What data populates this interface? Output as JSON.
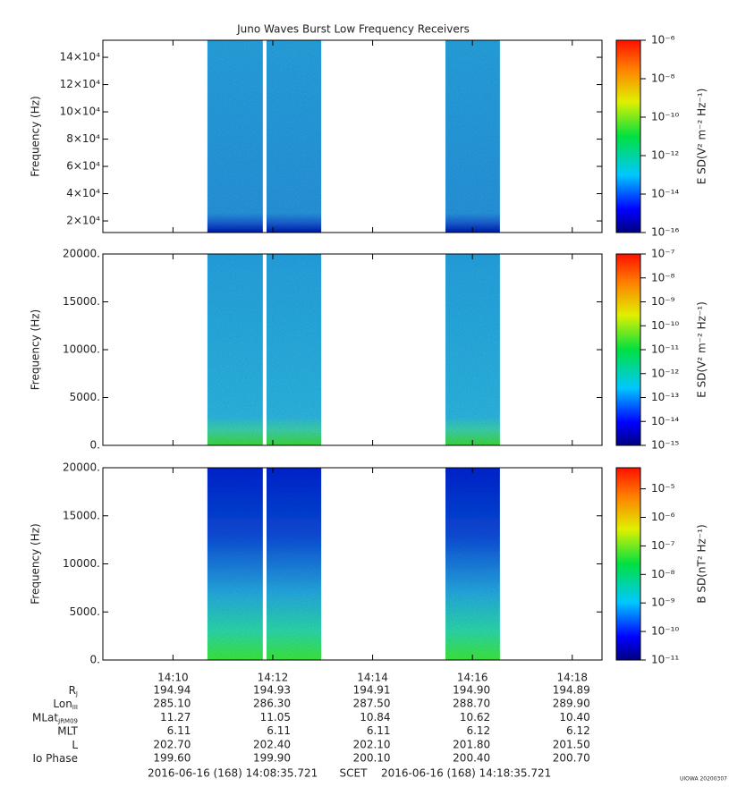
{
  "chart_data": [
    {
      "type": "heatmap",
      "title": "Juno Waves Burst Low Frequency Receivers",
      "ylabel": "Frequency (Hz)",
      "ylim": [
        11500,
        152500
      ],
      "yticks": [
        {
          "value": 20000,
          "label": "2×10⁴"
        },
        {
          "value": 40000,
          "label": "4×10⁴"
        },
        {
          "value": 60000,
          "label": "6×10⁴"
        },
        {
          "value": 80000,
          "label": "8×10⁴"
        },
        {
          "value": 100000,
          "label": "10×10⁴"
        },
        {
          "value": 120000,
          "label": "12×10⁴"
        },
        {
          "value": 140000,
          "label": "14×10⁴"
        }
      ],
      "intervals": [
        [
          850.69,
          851.8
        ],
        [
          851.875,
          852.97
        ],
        [
          855.46,
          856.55
        ]
      ],
      "zlabel": "E SD(V² m⁻² Hz⁻¹)",
      "zscale": "log",
      "zlim": [
        1e-16,
        1e-06
      ],
      "zticks": [
        {
          "value": 1e-16,
          "label": "10⁻¹⁶"
        },
        {
          "value": 1e-14,
          "label": "10⁻¹⁴"
        },
        {
          "value": 1e-12,
          "label": "10⁻¹²"
        },
        {
          "value": 1e-10,
          "label": "10⁻¹⁰"
        },
        {
          "value": 1e-08,
          "label": "10⁻⁸"
        },
        {
          "value": 1e-06,
          "label": "10⁻⁶"
        }
      ]
    },
    {
      "type": "heatmap",
      "ylabel": "Frequency (Hz)",
      "ylim": [
        0,
        20000
      ],
      "yticks": [
        {
          "value": 0,
          "label": "0."
        },
        {
          "value": 5000,
          "label": "5000."
        },
        {
          "value": 10000,
          "label": "10000."
        },
        {
          "value": 15000,
          "label": "15000."
        },
        {
          "value": 20000,
          "label": "20000."
        }
      ],
      "intervals": [
        [
          850.69,
          851.8
        ],
        [
          851.875,
          852.97
        ],
        [
          855.46,
          856.55
        ]
      ],
      "zlabel": "E SD(V² m⁻² Hz⁻¹)",
      "zscale": "log",
      "zlim": [
        1e-15,
        1e-07
      ],
      "zticks": [
        {
          "value": 1e-15,
          "label": "10⁻¹⁵"
        },
        {
          "value": 1e-14,
          "label": "10⁻¹⁴"
        },
        {
          "value": 1e-13,
          "label": "10⁻¹³"
        },
        {
          "value": 1e-12,
          "label": "10⁻¹²"
        },
        {
          "value": 1e-11,
          "label": "10⁻¹¹"
        },
        {
          "value": 1e-10,
          "label": "10⁻¹⁰"
        },
        {
          "value": 1e-09,
          "label": "10⁻⁹"
        },
        {
          "value": 1e-08,
          "label": "10⁻⁸"
        },
        {
          "value": 1e-07,
          "label": "10⁻⁷"
        }
      ]
    },
    {
      "type": "heatmap",
      "ylabel": "Frequency (Hz)",
      "ylim": [
        0,
        20000
      ],
      "yticks": [
        {
          "value": 0,
          "label": "0."
        },
        {
          "value": 5000,
          "label": "5000."
        },
        {
          "value": 10000,
          "label": "10000."
        },
        {
          "value": 15000,
          "label": "15000."
        },
        {
          "value": 20000,
          "label": "20000."
        }
      ],
      "intervals": [
        [
          850.69,
          851.8
        ],
        [
          851.875,
          852.97
        ],
        [
          855.46,
          856.55
        ]
      ],
      "zlabel": "B SD(nT² Hz⁻¹)",
      "zscale": "log",
      "zlim": [
        1e-11,
        5.5e-05
      ],
      "zticks": [
        {
          "value": 1e-11,
          "label": "10⁻¹¹"
        },
        {
          "value": 1e-10,
          "label": "10⁻¹⁰"
        },
        {
          "value": 1e-09,
          "label": "10⁻⁹"
        },
        {
          "value": 1e-08,
          "label": "10⁻⁸"
        },
        {
          "value": 1e-07,
          "label": "10⁻⁷"
        },
        {
          "value": 1e-06,
          "label": "10⁻⁶"
        },
        {
          "value": 1e-05,
          "label": "10⁻⁵"
        }
      ]
    }
  ],
  "time_axis": {
    "xlim": [
      848.5954,
      858.5954
    ],
    "xticks": [
      {
        "value": 850,
        "label": "14:10"
      },
      {
        "value": 852,
        "label": "14:12"
      },
      {
        "value": 854,
        "label": "14:14"
      },
      {
        "value": 856,
        "label": "14:16"
      },
      {
        "value": 858,
        "label": "14:18"
      }
    ]
  },
  "ephemeris": [
    {
      "label": "R",
      "sub": "J",
      "values": [
        "194.94",
        "194.93",
        "194.91",
        "194.90",
        "194.89"
      ]
    },
    {
      "label": "Lon",
      "sub": "III",
      "values": [
        "285.10",
        "286.30",
        "287.50",
        "288.70",
        "289.90"
      ]
    },
    {
      "label": "MLat",
      "sub": "JRM09",
      "values": [
        "11.27",
        "11.05",
        "10.84",
        "10.62",
        "10.40"
      ]
    },
    {
      "label": "MLT",
      "values": [
        "6.11",
        "6.11",
        "6.11",
        "6.12",
        "6.12"
      ]
    },
    {
      "label": "L",
      "values": [
        "202.70",
        "202.40",
        "202.10",
        "201.80",
        "201.50"
      ]
    },
    {
      "label": "Io Phase",
      "values": [
        "199.60",
        "199.90",
        "200.10",
        "200.40",
        "200.70"
      ]
    }
  ],
  "footer": {
    "start": "2016-06-16 (168) 14:08:35.721",
    "frame": "SCET",
    "end": "2016-06-16 (168) 14:18:35.721",
    "stamp": "UIOWA 20200307"
  }
}
